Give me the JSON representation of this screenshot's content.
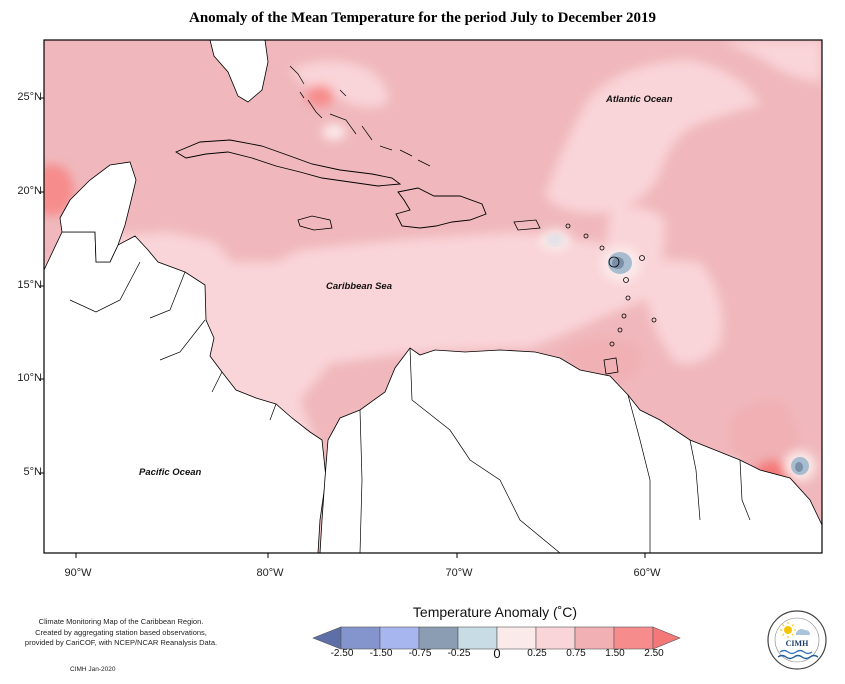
{
  "title": "Anomaly of the Mean Temperature for the period July to December 2019",
  "map": {
    "lat_labels": [
      "25°N",
      "20°N",
      "15°N",
      "10°N",
      "5°N"
    ],
    "lon_labels": [
      "90°W",
      "80°W",
      "70°W",
      "60°W"
    ],
    "ocean_labels": {
      "atlantic": "Atlantic Ocean",
      "caribbean": "Caribbean Sea",
      "pacific": "Pacific Ocean"
    }
  },
  "legend": {
    "title": "Temperature Anomaly (˚C)",
    "ticks": [
      "-2.50",
      "-1.50",
      "-0.75",
      "-0.25",
      "0",
      "0.25",
      "0.75",
      "1.50",
      "2.50"
    ],
    "colors": [
      "#5e6fa8",
      "#8494cc",
      "#a8b6f0",
      "#8a9db2",
      "#c8dce6",
      "#fbeaea",
      "#f9d4d8",
      "#f0b0b4",
      "#f78c8c",
      "#f47878"
    ]
  },
  "credit": {
    "line1": "Climate Monitoring Map of the Caribbean Region.",
    "line2": "Created by aggregating station based observations,",
    "line3": "provided by CariCOF, with NCEP/NCAR Reanalysis Data.",
    "date": "CIMH Jan-2020"
  },
  "logo": {
    "acronym": "CIMH"
  }
}
